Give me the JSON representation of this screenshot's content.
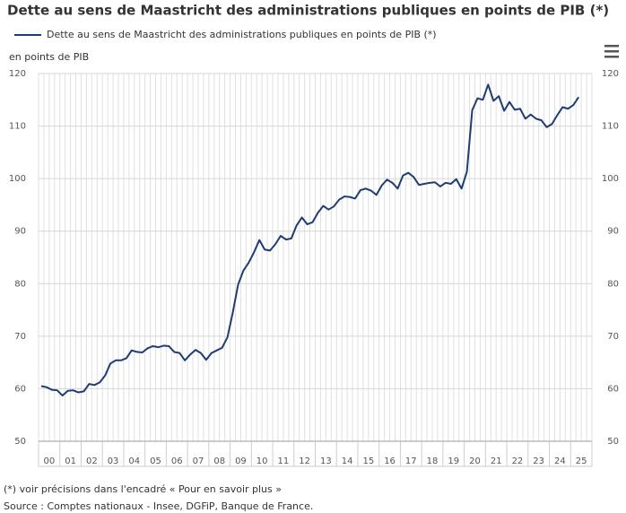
{
  "chart_data": {
    "type": "line",
    "title": "Dette au sens de Maastricht des administrations publiques en points de PIB (*)",
    "y_axis_label": "en points de PIB",
    "footnote": "(*) voir précisions dans l'encadré « Pour en savoir plus »",
    "source": "Source : Comptes nationaux - Insee, DGFiP, Banque de France.",
    "categories": [
      "00",
      null,
      null,
      null,
      "01",
      null,
      null,
      null,
      "02",
      null,
      null,
      null,
      "03",
      null,
      null,
      null,
      "04",
      null,
      null,
      null,
      "05",
      null,
      null,
      null,
      "06",
      null,
      null,
      null,
      "07",
      null,
      null,
      null,
      "08",
      null,
      null,
      null,
      "09",
      null,
      null,
      null,
      "10",
      null,
      null,
      null,
      "11",
      null,
      null,
      null,
      "12",
      null,
      null,
      null,
      "13",
      null,
      null,
      null,
      "14",
      null,
      null,
      null,
      "15",
      null,
      null,
      null,
      "16",
      null,
      null,
      null,
      "17",
      null,
      null,
      null,
      "18",
      null,
      null,
      null,
      "19",
      null,
      null,
      null,
      "20",
      null,
      null,
      null,
      "21",
      null,
      null,
      null,
      "22",
      null,
      null,
      null,
      "23",
      null,
      null,
      null,
      "24",
      null,
      null,
      null,
      "25",
      null
    ],
    "series": [
      {
        "name": "Dette au sens de Maastricht des administrations publiques en points de PIB (*)",
        "color": "#1f3d73",
        "values": [
          60.5,
          60.3,
          59.8,
          59.7,
          58.7,
          59.6,
          59.7,
          59.3,
          59.5,
          60.9,
          60.7,
          61.2,
          62.5,
          64.8,
          65.4,
          65.4,
          65.8,
          67.3,
          67.0,
          66.9,
          67.7,
          68.1,
          67.9,
          68.2,
          68.1,
          67.0,
          66.8,
          65.4,
          66.5,
          67.4,
          66.8,
          65.5,
          66.8,
          67.3,
          67.8,
          69.8,
          74.5,
          79.8,
          82.5,
          84.0,
          86.0,
          88.3,
          86.5,
          86.3,
          87.5,
          89.1,
          88.4,
          88.6,
          91.1,
          92.6,
          91.3,
          91.7,
          93.5,
          94.8,
          94.1,
          94.7,
          96.0,
          96.6,
          96.5,
          96.2,
          97.8,
          98.1,
          97.7,
          96.9,
          98.7,
          99.8,
          99.2,
          98.1,
          100.6,
          101.1,
          100.3,
          98.8,
          99.0,
          99.2,
          99.3,
          98.5,
          99.2,
          99.0,
          99.9,
          98.1,
          101.3,
          113.0,
          115.3,
          115.0,
          117.9,
          114.8,
          115.7,
          112.9,
          114.6,
          113.1,
          113.3,
          111.4,
          112.2,
          111.4,
          111.1,
          109.8,
          110.4,
          112.1,
          113.6,
          113.3,
          114.0,
          115.5
        ]
      }
    ],
    "ylim": [
      50,
      120
    ],
    "yticks": [
      50,
      60,
      70,
      80,
      90,
      100,
      110,
      120
    ],
    "grid": true
  }
}
